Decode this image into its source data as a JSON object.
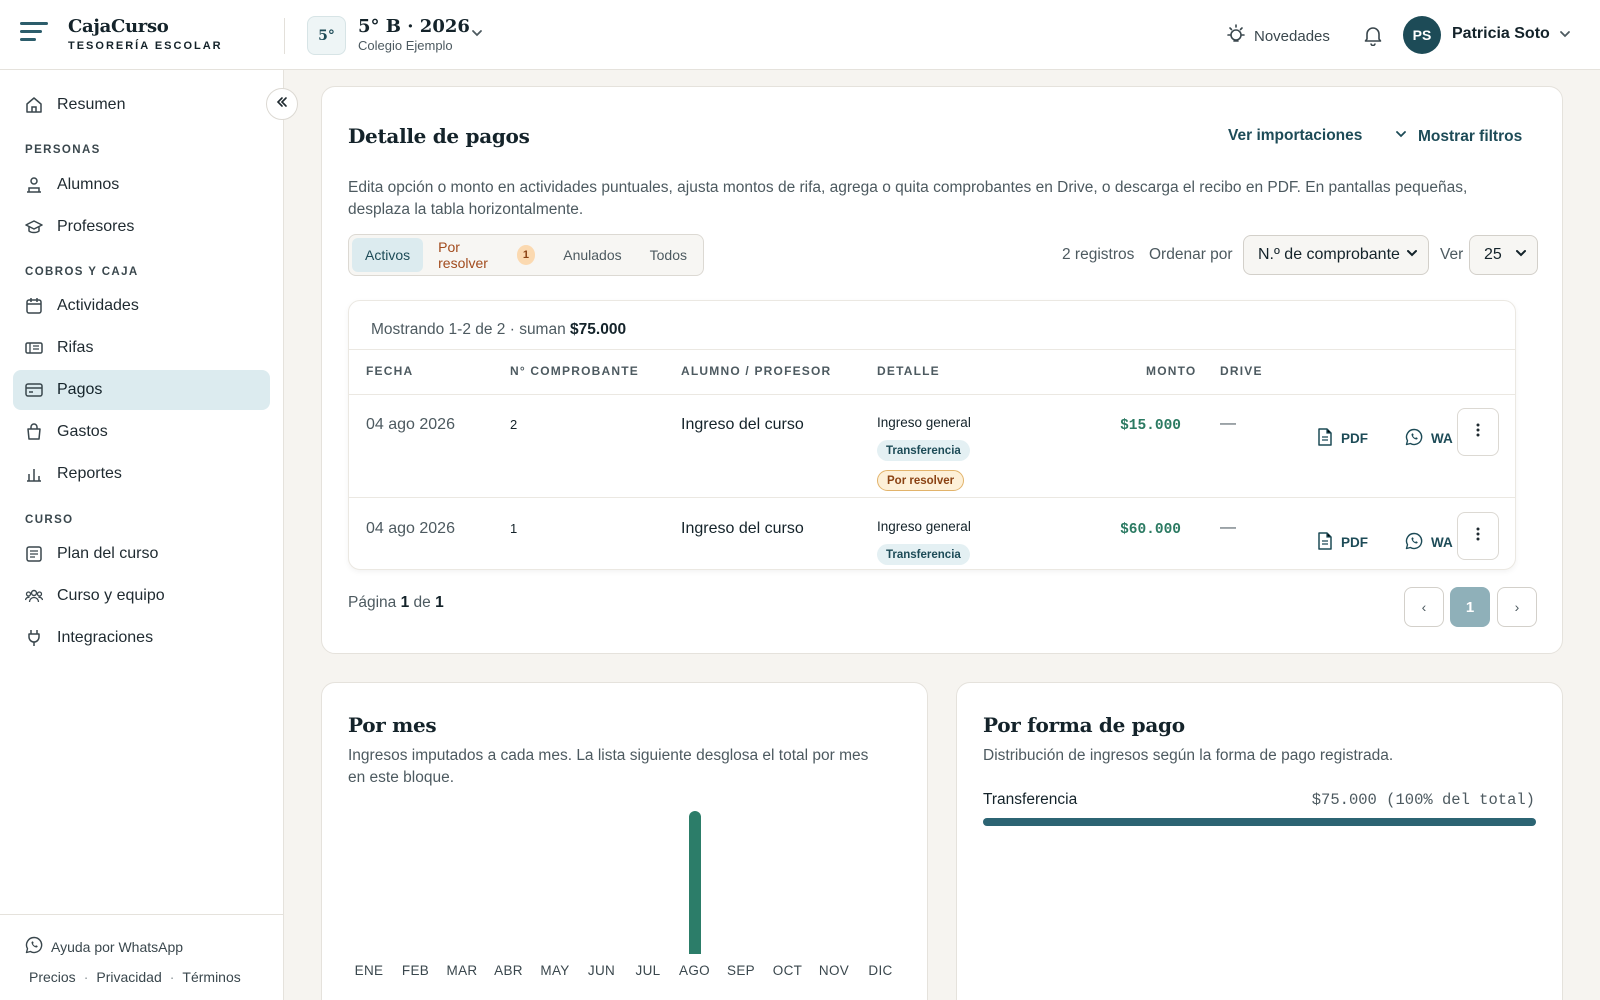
{
  "header": {
    "brand_name": "CajaCurso",
    "brand_sub": "TESORERÍA ESCOLAR",
    "course_badge": "5°",
    "course_title": "5° B · 2026",
    "course_school": "Colegio Ejemplo",
    "novedades": "Novedades",
    "user_initials": "PS",
    "user_name": "Patricia Soto"
  },
  "sidebar": {
    "resumen": "Resumen",
    "sections": {
      "personas": "PERSONAS",
      "cobros": "COBROS Y CAJA",
      "curso": "CURSO"
    },
    "items": {
      "alumnos": "Alumnos",
      "profesores": "Profesores",
      "actividades": "Actividades",
      "rifas": "Rifas",
      "pagos": "Pagos",
      "gastos": "Gastos",
      "reportes": "Reportes",
      "plan": "Plan del curso",
      "equipo": "Curso y equipo",
      "integraciones": "Integraciones"
    },
    "help": "Ayuda por WhatsApp",
    "footer": {
      "precios": "Precios",
      "privacidad": "Privacidad",
      "terminos": "Términos",
      "sep": "·"
    }
  },
  "payments": {
    "title": "Detalle de pagos",
    "ver_importaciones": "Ver importaciones",
    "mostrar_filtros": "Mostrar filtros",
    "description_line1": "Edita opción o monto en actividades puntuales, ajusta montos de rifa, agrega o quita comprobantes en Drive, o descarga el recibo en PDF. En pantallas pequeñas,",
    "description_line2": "desplaza la tabla horizontalmente.",
    "tabs": {
      "activos": "Activos",
      "por_resolver": "Por resolver",
      "por_resolver_count": "1",
      "anulados": "Anulados",
      "todos": "Todos"
    },
    "registros": "2 registros",
    "ordenar_por": "Ordenar por",
    "sort_value": "N.º de comprobante",
    "ver": "Ver",
    "per_page": "25",
    "showing_prefix": "Mostrando 1-2 de 2 · suman",
    "showing_total": "$75.000",
    "columns": {
      "fecha": "FECHA",
      "comprobante": "N° COMPROBANTE",
      "alumno": "ALUMNO / PROFESOR",
      "detalle": "DETALLE",
      "monto": "MONTO",
      "drive": "DRIVE"
    },
    "rows": [
      {
        "fecha": "04 ago 2026",
        "comprobante": "2",
        "alumno": "Ingreso del curso",
        "detalle": "Ingreso general",
        "metodo": "Transferencia",
        "estado": "Por resolver",
        "monto": "$15.000",
        "drive": "—",
        "pdf": "PDF",
        "wa": "WA"
      },
      {
        "fecha": "04 ago 2026",
        "comprobante": "1",
        "alumno": "Ingreso del curso",
        "detalle": "Ingreso general",
        "metodo": "Transferencia",
        "monto": "$60.000",
        "drive": "—",
        "pdf": "PDF",
        "wa": "WA"
      }
    ],
    "pagination": {
      "pagina": "Página",
      "current": "1",
      "de": "de",
      "total": "1",
      "prev": "‹",
      "next": "›",
      "page_btn": "1"
    }
  },
  "por_mes": {
    "title": "Por mes",
    "desc_line1": "Ingresos imputados a cada mes. La lista siguiente desglosa el total por mes",
    "desc_line2": "en este bloque."
  },
  "chart_data": {
    "type": "bar",
    "categories": [
      "ENE",
      "FEB",
      "MAR",
      "ABR",
      "MAY",
      "JUN",
      "JUL",
      "AGO",
      "SEP",
      "OCT",
      "NOV",
      "DIC"
    ],
    "values": [
      0,
      0,
      0,
      0,
      0,
      0,
      0,
      75000,
      0,
      0,
      0,
      0
    ],
    "color": "#2c7d69"
  },
  "forma_pago": {
    "title": "Por forma de pago",
    "desc": "Distribución de ingresos según la forma de pago registrada.",
    "items": [
      {
        "label": "Transferencia",
        "value": "$75.000 (100% del total)",
        "share": 1.0
      }
    ]
  }
}
